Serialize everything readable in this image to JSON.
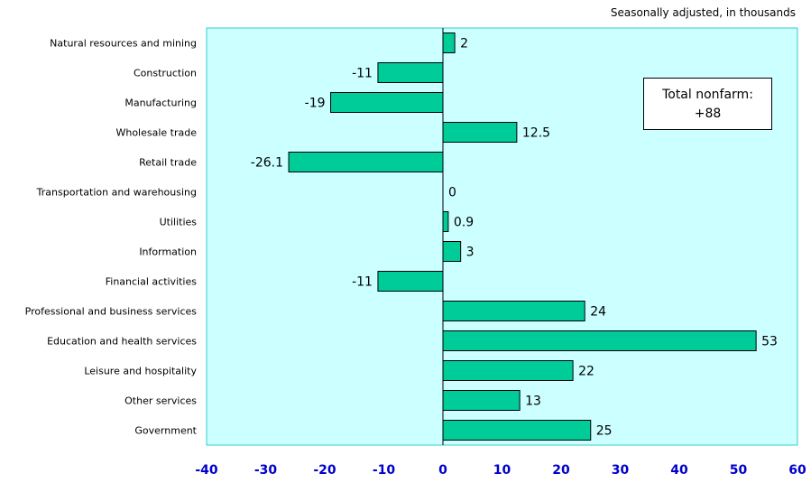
{
  "chart_data": {
    "type": "bar",
    "orientation": "horizontal",
    "subtitle": "Seasonally adjusted, in thousands",
    "annotation": {
      "label": "Total nonfarm:",
      "value": "+88"
    },
    "categories": [
      "Natural resources and mining",
      "Construction",
      "Manufacturing",
      "Wholesale trade",
      "Retail trade",
      "Transportation and warehousing",
      "Utilities",
      "Information",
      "Financial activities",
      "Professional and business services",
      "Education and health services",
      "Leisure and hospitality",
      "Other services",
      "Government"
    ],
    "values": [
      2,
      -11,
      -19,
      12.5,
      -26.1,
      0,
      0.9,
      3,
      -11,
      24,
      53,
      22,
      13,
      25
    ],
    "value_labels": [
      "2",
      "-11",
      "-19",
      "12.5",
      "-26.1",
      "0",
      "0.9",
      "3",
      "-11",
      "24",
      "53",
      "22",
      "13",
      "25"
    ],
    "xlim": [
      -40,
      60
    ],
    "xticks": [
      -40,
      -30,
      -20,
      -10,
      0,
      10,
      20,
      30,
      40,
      50,
      60
    ],
    "grid": false,
    "colors": {
      "plot_bg": "#ccffff",
      "bar_fill": "#00cc99",
      "tick_label": "#0000cc",
      "plot_border": "#33cccc"
    }
  }
}
